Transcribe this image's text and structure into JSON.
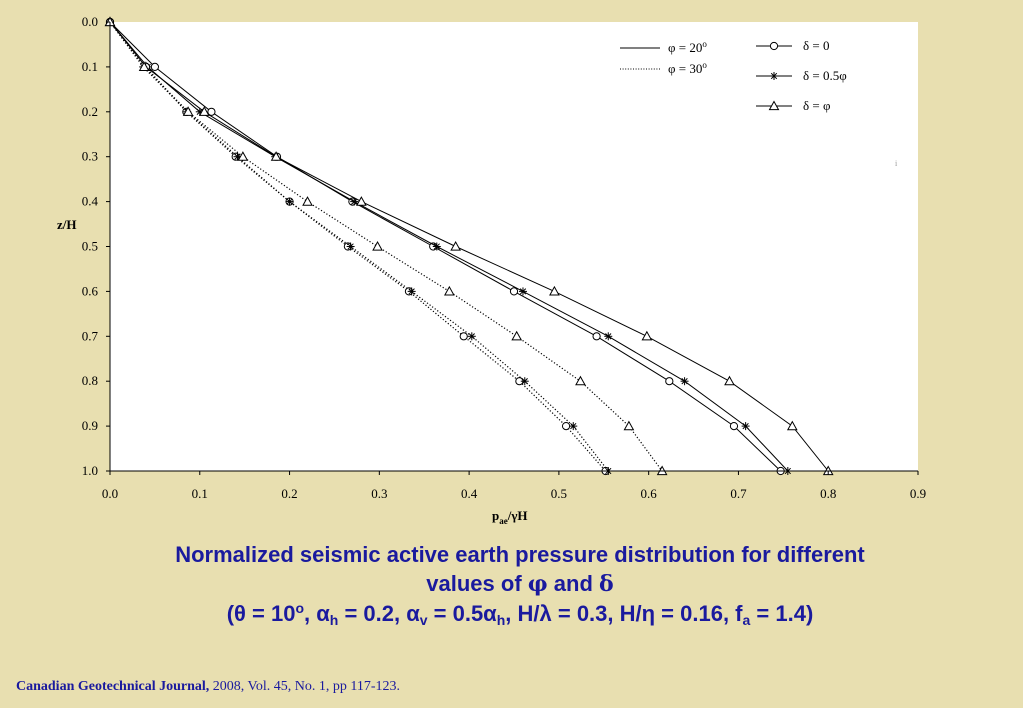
{
  "chart_data": {
    "type": "line",
    "xlabel": "pae/γH",
    "xlabel_main": "p",
    "xlabel_sub": "ae",
    "xlabel_tail": "/γH",
    "ylabel": "z/H",
    "xlim": [
      0.0,
      0.9
    ],
    "ylim": [
      0.0,
      1.0
    ],
    "y_inverted": true,
    "grid": false,
    "xticks": [
      "0.0",
      "0.1",
      "0.2",
      "0.3",
      "0.4",
      "0.5",
      "0.6",
      "0.7",
      "0.8",
      "0.9"
    ],
    "yticks": [
      "0.0",
      "0.1",
      "0.2",
      "0.3",
      "0.4",
      "0.5",
      "0.6",
      "0.7",
      "0.8",
      "0.9",
      "1.0"
    ],
    "legend_lines": [
      {
        "label": "φ = 20",
        "sup": "o",
        "style": "solid"
      },
      {
        "label": "φ = 30",
        "sup": "o",
        "style": "dotted"
      }
    ],
    "legend_markers": [
      {
        "label": "δ = 0",
        "marker": "circle"
      },
      {
        "label": "δ = 0.5φ",
        "marker": "star"
      },
      {
        "label": "δ = φ",
        "marker": "triangle"
      }
    ],
    "z": [
      0.0,
      0.1,
      0.2,
      0.3,
      0.4,
      0.5,
      0.6,
      0.7,
      0.8,
      0.9,
      1.0
    ],
    "series": [
      {
        "phi": "20",
        "delta": "0",
        "style": "solid",
        "marker": "circle",
        "values": [
          0.0,
          0.05,
          0.113,
          0.186,
          0.27,
          0.36,
          0.45,
          0.542,
          0.623,
          0.695,
          0.747
        ]
      },
      {
        "phi": "20",
        "delta": "0.5",
        "style": "solid",
        "marker": "star",
        "values": [
          0.0,
          0.042,
          0.1,
          0.184,
          0.272,
          0.364,
          0.46,
          0.555,
          0.64,
          0.708,
          0.755
        ]
      },
      {
        "phi": "20",
        "delta": "1",
        "style": "solid",
        "marker": "triangle",
        "values": [
          0.0,
          0.04,
          0.105,
          0.185,
          0.28,
          0.385,
          0.495,
          0.598,
          0.69,
          0.76,
          0.8
        ]
      },
      {
        "phi": "30",
        "delta": "0",
        "style": "dotted",
        "marker": "circle",
        "values": [
          0.0,
          0.04,
          0.085,
          0.14,
          0.2,
          0.265,
          0.333,
          0.394,
          0.456,
          0.508,
          0.552
        ]
      },
      {
        "phi": "30",
        "delta": "0.5",
        "style": "dotted",
        "marker": "star",
        "values": [
          0.0,
          0.037,
          0.086,
          0.142,
          0.2,
          0.268,
          0.336,
          0.403,
          0.462,
          0.516,
          0.555
        ]
      },
      {
        "phi": "30",
        "delta": "1",
        "style": "dotted",
        "marker": "triangle",
        "values": [
          0.0,
          0.038,
          0.087,
          0.148,
          0.22,
          0.298,
          0.378,
          0.453,
          0.524,
          0.578,
          0.615
        ]
      }
    ],
    "stray_mark": "i"
  },
  "caption": {
    "line1": "Normalized seismic active earth pressure distribution for different",
    "line2_a": "values of ",
    "phi": "φ",
    "line2_b": " and ",
    "delta": "δ",
    "l3_open": "(θ = 10",
    "l3_o": "o",
    "l3_b": ", α",
    "l3_h1": "h",
    "l3_c": " = 0.2, α",
    "l3_v": "v",
    "l3_d": " = 0.5α",
    "l3_h2": "h",
    "l3_e": ", H/λ = 0.3, H/η = 0.16, f",
    "l3_a": "a",
    "l3_f": " = 1.4)"
  },
  "citation": {
    "journal": "Canadian Geotechnical Journal,",
    "details": " 2008, Vol. 45, No. 1, pp 117-123."
  },
  "colors": {
    "background": "#e8dfb0",
    "plot_area": "#ffffff",
    "caption": "#1a1a9e"
  }
}
